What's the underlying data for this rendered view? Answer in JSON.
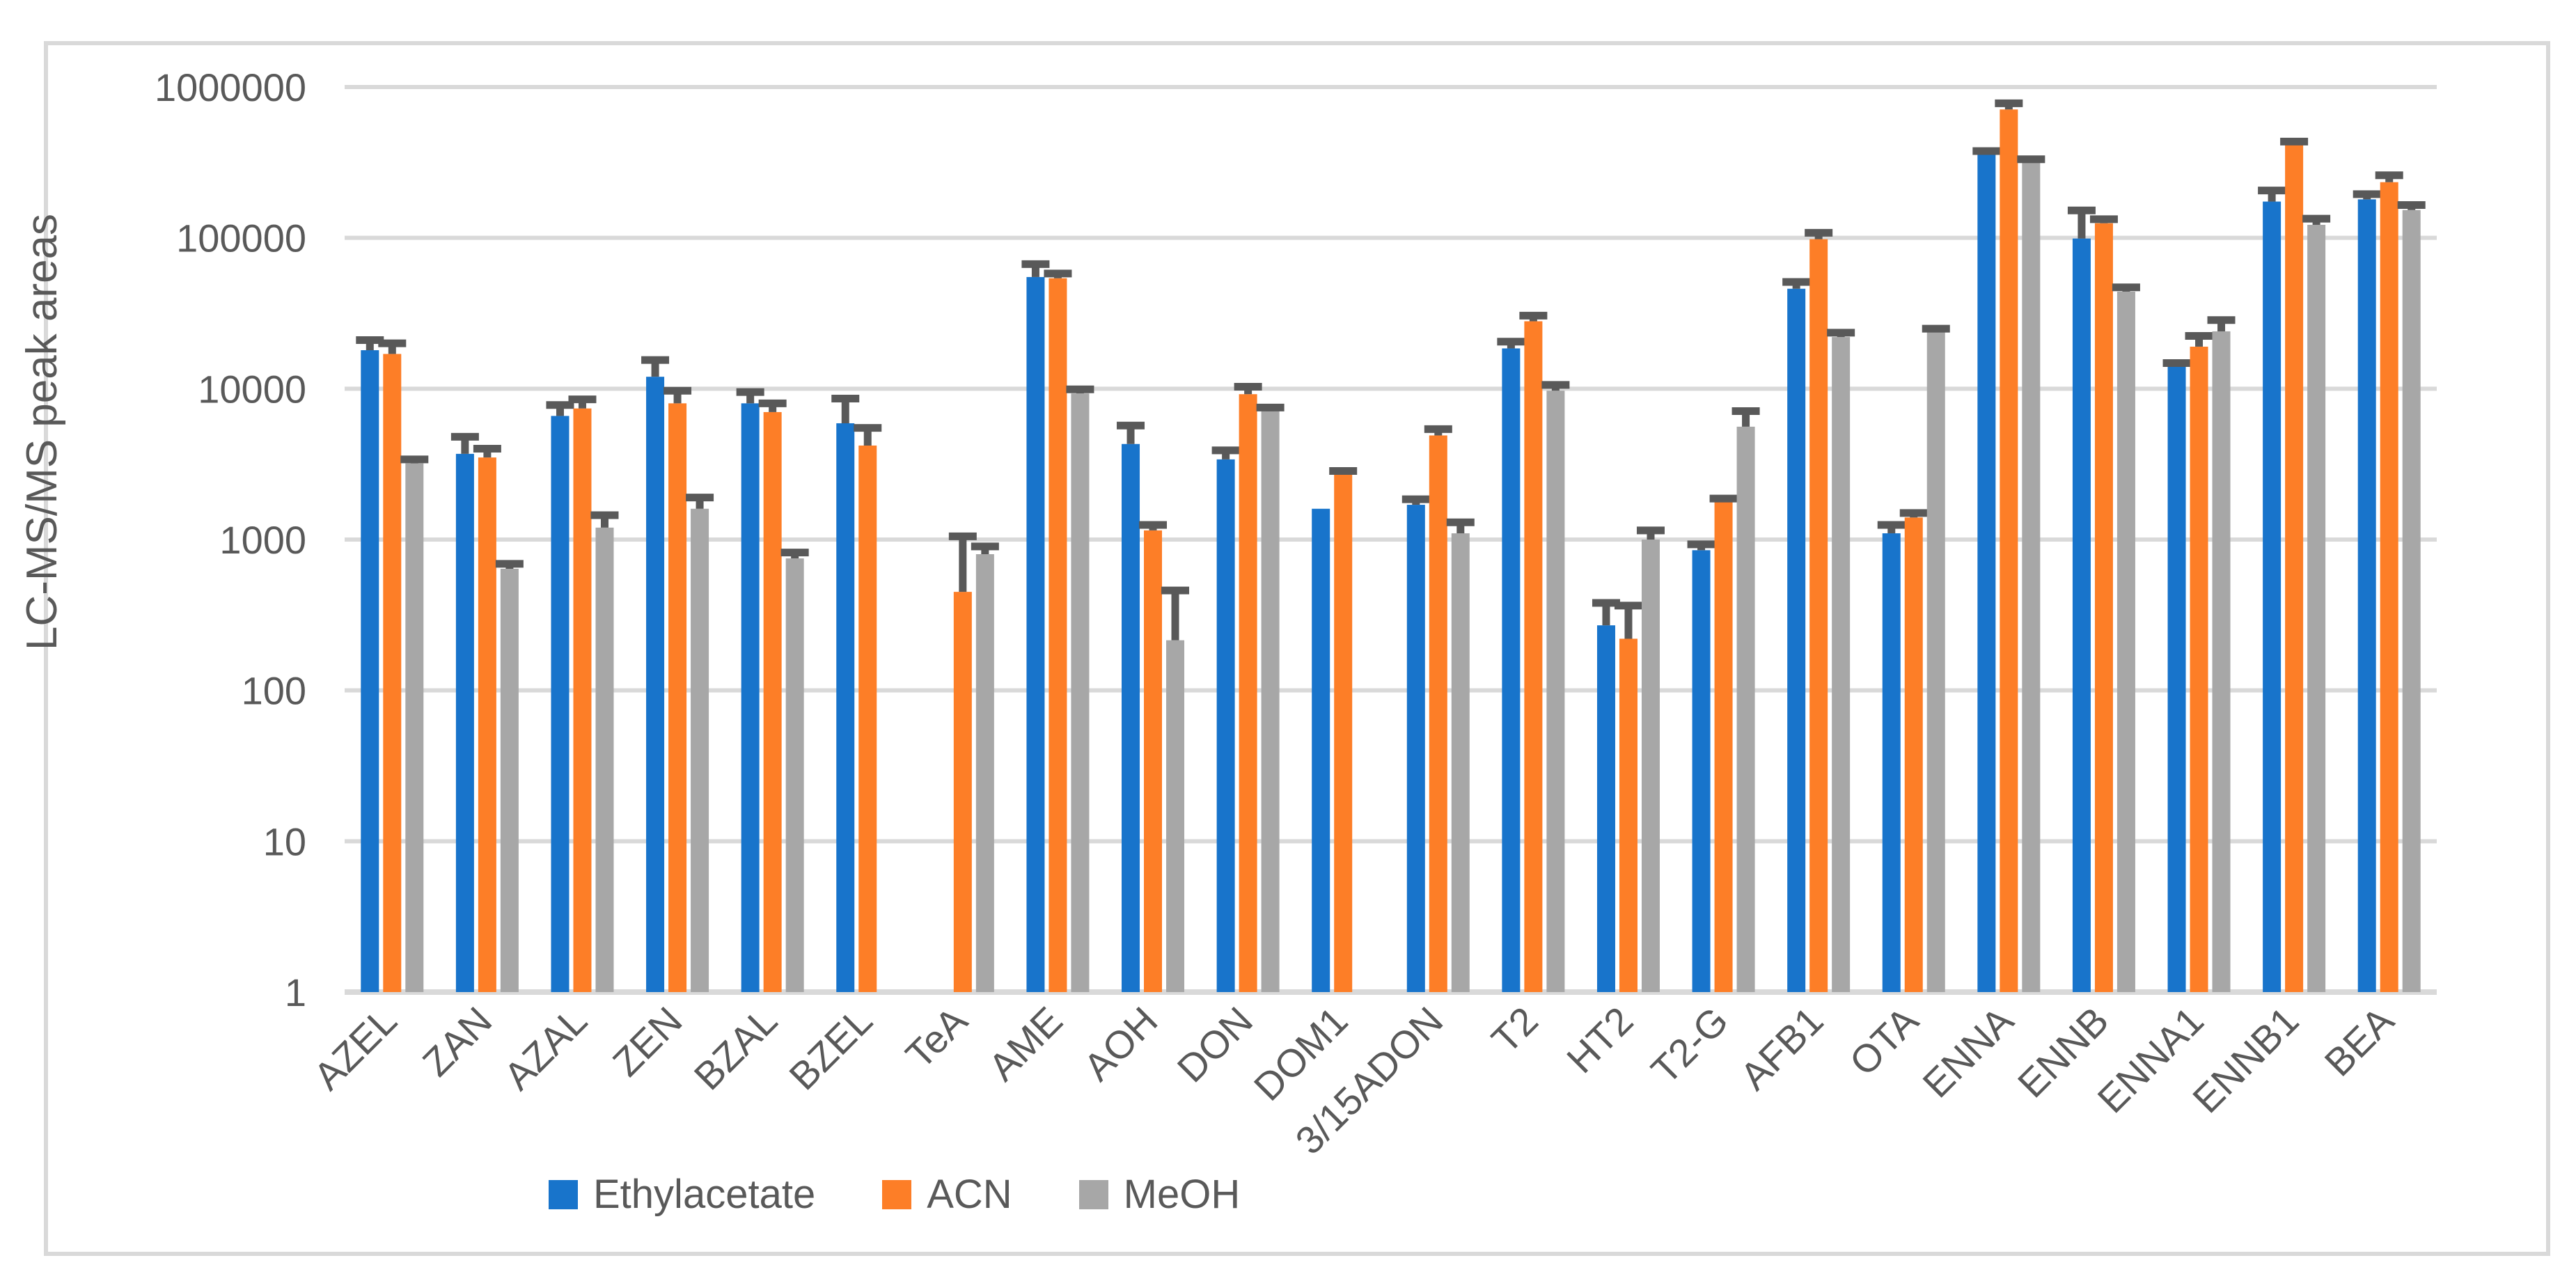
{
  "chart_data": {
    "type": "bar",
    "title": "",
    "ylabel": "LC-MS/MS peak areas",
    "xlabel": "",
    "y_scale": "log",
    "ylim": [
      1,
      1000000
    ],
    "y_ticks": [
      "1",
      "10",
      "100",
      "1000",
      "10000",
      "100000",
      "1000000"
    ],
    "grid": true,
    "legend_position": "bottom",
    "categories": [
      "AZEL",
      "ZAN",
      "AZAL",
      "ZEN",
      "BZAL",
      "BZEL",
      "TeA",
      "AME",
      "AOH",
      "DON",
      "DOM1",
      "3/15ADON",
      "T2",
      "HT2",
      "T2-G",
      "AFB1",
      "OTA",
      "ENNA",
      "ENNB",
      "ENNA1",
      "ENNB1",
      "BEA"
    ],
    "series": [
      {
        "name": "Ethylacetate",
        "color": "#1874CB",
        "values": [
          18000,
          3700,
          6600,
          12000,
          8000,
          5900,
          null,
          55000,
          4300,
          3400,
          1600,
          1700,
          18500,
          270,
          850,
          46000,
          1100,
          363000,
          99000,
          14000,
          174000,
          180000
        ],
        "err_top": [
          21000,
          4800,
          7800,
          15500,
          9500,
          8600,
          null,
          67000,
          5700,
          3900,
          null,
          1850,
          20500,
          380,
          930,
          51000,
          1250,
          376000,
          152000,
          14800,
          206000,
          195000
        ]
      },
      {
        "name": "ACN",
        "color": "#FD7E27",
        "values": [
          17000,
          3500,
          7400,
          8000,
          7000,
          4200,
          450,
          54000,
          1150,
          9200,
          2700,
          4900,
          28000,
          220,
          1800,
          98000,
          1400,
          710000,
          125000,
          19000,
          413000,
          234000
        ],
        "err_top": [
          20000,
          4000,
          8500,
          9700,
          8000,
          5500,
          1050,
          58000,
          1250,
          10300,
          2850,
          5400,
          30500,
          365,
          1870,
          108000,
          1500,
          780000,
          133000,
          22400,
          435000,
          260000
        ]
      },
      {
        "name": "MeOH",
        "color": "#A7A7A7",
        "values": [
          3200,
          640,
          1200,
          1600,
          750,
          null,
          800,
          9300,
          215,
          7100,
          null,
          1100,
          9700,
          1000,
          5600,
          22000,
          24000,
          315000,
          44000,
          24000,
          122000,
          153000
        ],
        "err_top": [
          3400,
          690,
          1450,
          1900,
          820,
          null,
          900,
          9900,
          460,
          7500,
          null,
          1300,
          10600,
          1150,
          7100,
          23500,
          25000,
          332000,
          47000,
          28500,
          134000,
          165000
        ]
      }
    ],
    "colors": {
      "gridline": "#D9D9D9",
      "axis_line": "#D9D9D9",
      "error_bar": "#595959",
      "text": "#595959"
    }
  }
}
